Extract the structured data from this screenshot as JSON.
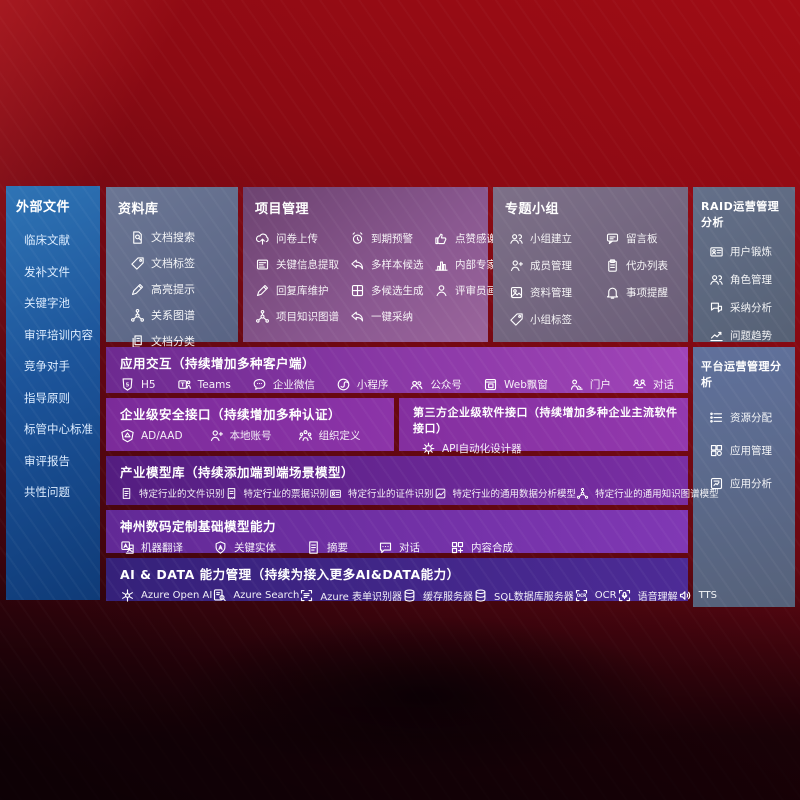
{
  "colors": {
    "background_red": "#8c0a13",
    "sidebar_blue": "#1c549a",
    "slate_panel": "#5d6980",
    "purple_panel": "#7b2b9a",
    "deep_purple": "#531d80",
    "indigo_panel": "#35217a"
  },
  "sidebar": {
    "title": "外部文件",
    "items": [
      {
        "label": "临床文献"
      },
      {
        "label": "发补文件"
      },
      {
        "label": "关键字池"
      },
      {
        "label": "审评培训内容"
      },
      {
        "label": "竞争对手"
      },
      {
        "label": "指导原则"
      },
      {
        "label": "标管中心标准"
      },
      {
        "label": "审评报告"
      },
      {
        "label": "共性问题"
      }
    ]
  },
  "library": {
    "title": "资料库",
    "items": [
      {
        "label": "文档搜索",
        "icon": "doc-search-icon"
      },
      {
        "label": "文档标签",
        "icon": "tag-icon"
      },
      {
        "label": "高亮提示",
        "icon": "highlight-pen-icon"
      },
      {
        "label": "关系图谱",
        "icon": "graph-icon"
      },
      {
        "label": "文档分类",
        "icon": "doc-classify-icon"
      }
    ]
  },
  "project": {
    "title": "项目管理",
    "items": [
      {
        "label": "问卷上传",
        "icon": "cloud-upload-icon"
      },
      {
        "label": "到期预警",
        "icon": "alarm-icon"
      },
      {
        "label": "点赞感谢",
        "icon": "thumbs-up-icon"
      },
      {
        "label": "关键信息提取",
        "icon": "info-extract-icon"
      },
      {
        "label": "多样本候选",
        "icon": "reply-arrow-icon"
      },
      {
        "label": "内部专家排名",
        "icon": "expert-rank-icon"
      },
      {
        "label": "回复库维护",
        "icon": "pen-edit-icon"
      },
      {
        "label": "多候选生成",
        "icon": "puzzle-icon"
      },
      {
        "label": "评审员画像",
        "icon": "reviewer-person-icon"
      },
      {
        "label": "项目知识图谱",
        "icon": "knowledge-graph-icon"
      },
      {
        "label": "一键采纳",
        "icon": "adopt-arrow-icon"
      }
    ]
  },
  "groups": {
    "title": "专题小组",
    "items": [
      {
        "label": "小组建立",
        "icon": "team-people-icon"
      },
      {
        "label": "留言板",
        "icon": "bbs-board-icon"
      },
      {
        "label": "成员管理",
        "icon": "member-person-plus-icon"
      },
      {
        "label": "代办列表",
        "icon": "todo-clipboard-icon"
      },
      {
        "label": "资料管理",
        "icon": "album-icon"
      },
      {
        "label": "事项提醒",
        "icon": "bell-icon"
      },
      {
        "label": "小组标签",
        "icon": "group-tag-icon"
      }
    ]
  },
  "raid": {
    "title": "RAID运营管理分析",
    "items": [
      {
        "label": "用户锻炼",
        "icon": "user-card-icon"
      },
      {
        "label": "角色管理",
        "icon": "role-people-icon"
      },
      {
        "label": "采纳分析",
        "icon": "adopt-chat-icon"
      },
      {
        "label": "问题趋势",
        "icon": "trend-chart-icon"
      }
    ]
  },
  "platform": {
    "title": "平台运营管理分析",
    "items": [
      {
        "label": "资源分配",
        "icon": "resource-list-icon"
      },
      {
        "label": "应用管理",
        "icon": "app-grid-icon"
      },
      {
        "label": "应用分析",
        "icon": "app-report-icon"
      }
    ]
  },
  "interaction": {
    "title": "应用交互（持续增加多种客户端）",
    "items": [
      {
        "label": "H5",
        "icon": "h5-icon"
      },
      {
        "label": "Teams",
        "icon": "teams-icon"
      },
      {
        "label": "企业微信",
        "icon": "wechat-work-icon"
      },
      {
        "label": "小程序",
        "icon": "miniprogram-icon"
      },
      {
        "label": "公众号",
        "icon": "official-account-icon"
      },
      {
        "label": "Web飘窗",
        "icon": "web-window-icon"
      },
      {
        "label": "门户",
        "icon": "portal-person-icon"
      },
      {
        "label": "对话",
        "icon": "dialog-people-icon"
      }
    ]
  },
  "security": {
    "title": "企业级安全接口（持续增加多种认证）",
    "items": [
      {
        "label": "AD/AAD",
        "icon": "ad-shield-icon"
      },
      {
        "label": "本地账号",
        "icon": "local-account-icon"
      },
      {
        "label": "组织定义",
        "icon": "org-define-icon"
      }
    ]
  },
  "thirdparty": {
    "title": "第三方企业级软件接口（持续增加多种企业主流软件接口）",
    "items": [
      {
        "label": "API自动化设计器",
        "icon": "api-gear-icon"
      }
    ]
  },
  "industry": {
    "title": "产业模型库（持续添加端到端场景模型）",
    "items": [
      {
        "label": "特定行业的文件识别",
        "icon": "industry-doc-icon"
      },
      {
        "label": "特定行业的票据识别",
        "icon": "receipt-icon"
      },
      {
        "label": "特定行业的证件识别",
        "icon": "id-card-icon"
      },
      {
        "label": "特定行业的通用数据分析模型",
        "icon": "data-image-icon"
      },
      {
        "label": "特定行业的通用知识图谱模型",
        "icon": "knowledge-graph2-icon"
      }
    ]
  },
  "digitalchina": {
    "title": "神州数码定制基础模型能力",
    "items": [
      {
        "label": "机器翻译",
        "icon": "translate-icon"
      },
      {
        "label": "关键实体",
        "icon": "entity-shield-icon"
      },
      {
        "label": "摘要",
        "icon": "summary-doc-icon"
      },
      {
        "label": "对话",
        "icon": "chat-bubble-icon"
      },
      {
        "label": "内容合成",
        "icon": "compose-grid-icon"
      }
    ]
  },
  "aidata": {
    "title": "AI & DATA 能力管理（持续为接入更多AI&DATA能力）",
    "items": [
      {
        "label": "Azure Open AI",
        "icon": "openai-icon"
      },
      {
        "label": "Azure Search",
        "icon": "azure-search-icon"
      },
      {
        "label": "Azure 表单识别器",
        "icon": "form-recognizer-icon"
      },
      {
        "label": "缓存服务器",
        "icon": "cache-server-icon"
      },
      {
        "label": "SQL数据库服务器",
        "icon": "sql-db-icon"
      },
      {
        "label": "OCR",
        "icon": "ocr-icon"
      },
      {
        "label": "语音理解",
        "icon": "speech-icon"
      },
      {
        "label": "TTS",
        "icon": "tts-speaker-icon"
      }
    ]
  }
}
